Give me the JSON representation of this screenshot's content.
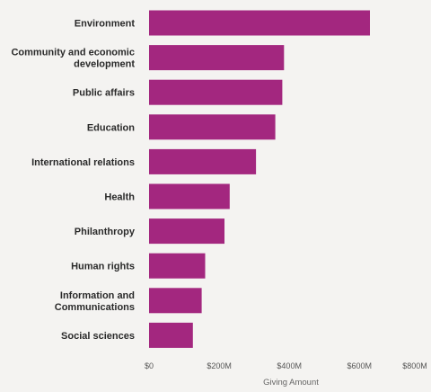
{
  "chart_data": {
    "type": "bar",
    "orientation": "horizontal",
    "categories": [
      "Environment",
      "Community and economic\ndevelopment",
      "Public affairs",
      "Education",
      "International relations",
      "Health",
      "Philanthropy",
      "Human rights",
      "Information and\nCommunications",
      "Social sciences"
    ],
    "values": [
      630,
      385,
      380,
      360,
      305,
      230,
      215,
      160,
      150,
      125
    ],
    "xlabel": "Giving Amount",
    "ylabel": "",
    "xlim": [
      0,
      800
    ],
    "x_ticks": [
      0,
      200,
      400,
      600,
      800
    ],
    "x_tick_labels": [
      "$0",
      "$200M",
      "$400M",
      "$600M",
      "$800M"
    ],
    "unit": "$M",
    "grid": false,
    "bar_color": "#a3277f"
  }
}
